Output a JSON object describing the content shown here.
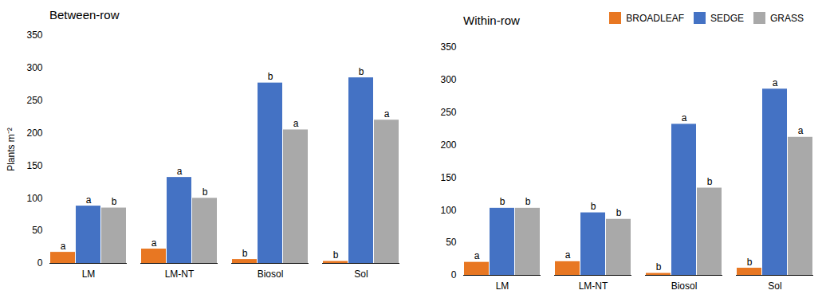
{
  "chart_data": [
    {
      "type": "bar",
      "title": "Between-row",
      "ylabel": "Plants m⁻²",
      "categories": [
        "LM",
        "LM-NT",
        "Biosol",
        "Sol"
      ],
      "series": [
        {
          "name": "BROADLEAF",
          "color": "#E87722",
          "values": [
            17,
            22,
            6,
            3
          ],
          "annotations": [
            "a",
            "a",
            "b",
            "b"
          ]
        },
        {
          "name": "SEDGE",
          "color": "#4472C4",
          "values": [
            88,
            132,
            277,
            285
          ],
          "annotations": [
            "a",
            "a",
            "b",
            "b"
          ]
        },
        {
          "name": "GRASS",
          "color": "#A9A9A9",
          "values": [
            85,
            100,
            205,
            220
          ],
          "annotations": [
            "b",
            "b",
            "a",
            "a"
          ]
        }
      ],
      "ylim": [
        0,
        350
      ],
      "yticks": [
        0,
        50,
        100,
        150,
        200,
        250,
        300,
        350
      ],
      "grid": false
    },
    {
      "type": "bar",
      "title": "Within-row",
      "categories": [
        "LM",
        "LM-NT",
        "Biosol",
        "Sol"
      ],
      "series": [
        {
          "name": "BROADLEAF",
          "color": "#E87722",
          "values": [
            20,
            21,
            3,
            11
          ],
          "annotations": [
            "a",
            "a",
            "b",
            "b"
          ]
        },
        {
          "name": "SEDGE",
          "color": "#4472C4",
          "values": [
            103,
            96,
            232,
            286
          ],
          "annotations": [
            "b",
            "b",
            "a",
            "a"
          ]
        },
        {
          "name": "GRASS",
          "color": "#A9A9A9",
          "values": [
            103,
            86,
            134,
            212
          ],
          "annotations": [
            "b",
            "b",
            "b",
            "a"
          ]
        }
      ],
      "ylim": [
        0,
        350
      ],
      "yticks": [
        0,
        50,
        100,
        150,
        200,
        250,
        300,
        350
      ],
      "grid": false,
      "legend": "upper right"
    }
  ]
}
